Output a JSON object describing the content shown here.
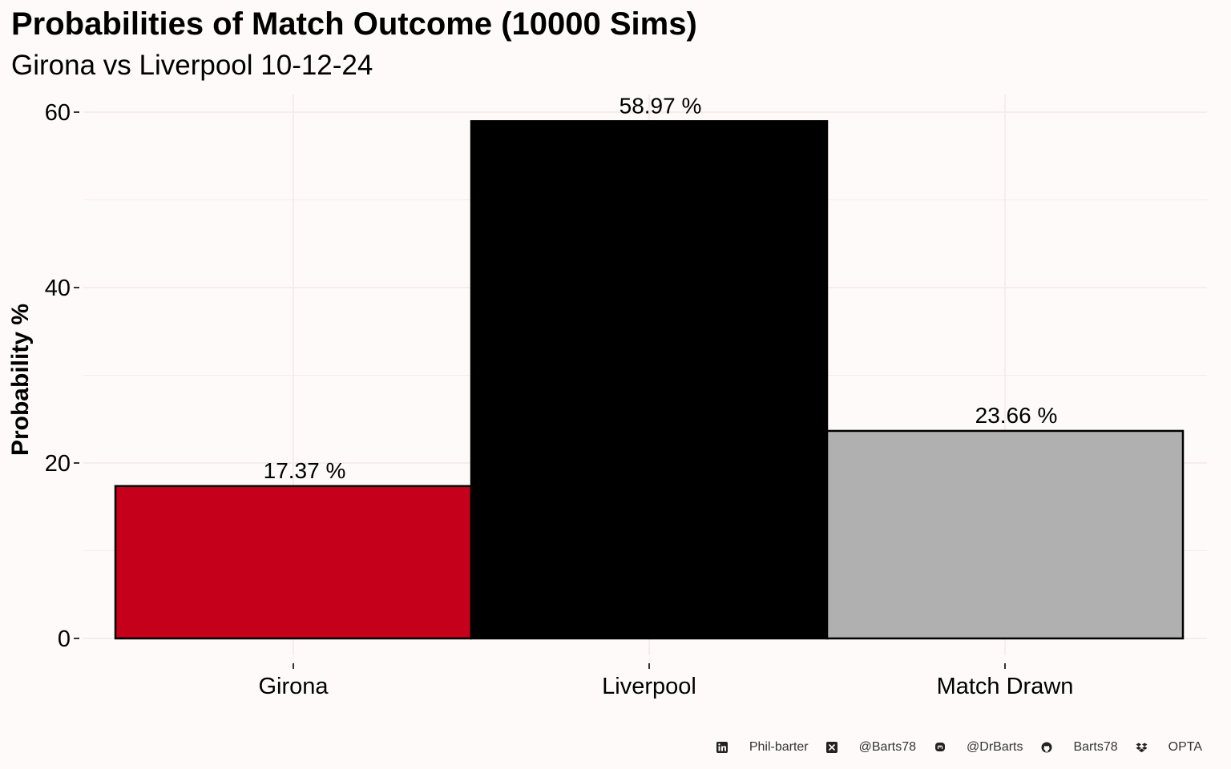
{
  "chart_data": {
    "type": "bar",
    "title": "Probabilities of Match Outcome (10000 Sims)",
    "subtitle": "Girona vs Liverpool 10-12-24",
    "xlabel": "",
    "ylabel": "Probability %",
    "categories": [
      "Girona",
      "Liverpool",
      "Match Drawn"
    ],
    "values": [
      17.37,
      58.97,
      23.66
    ],
    "data_labels": [
      "17.37  %",
      "58.97  %",
      "23.66  %"
    ],
    "bar_colors": [
      "#c4001a",
      "#000000",
      "#b0b0b0"
    ],
    "ylim": [
      0,
      62
    ],
    "yticks": [
      0,
      20,
      40,
      60
    ],
    "grid": true,
    "legend": "none"
  },
  "footer": {
    "items": [
      {
        "icon": "linkedin-icon",
        "text": "Phil-barter"
      },
      {
        "icon": "x-twitter-icon",
        "text": "@Barts78"
      },
      {
        "icon": "mastodon-icon",
        "text": "@DrBarts"
      },
      {
        "icon": "github-icon",
        "text": "Barts78"
      },
      {
        "icon": "dropbox-icon",
        "text": "OPTA"
      }
    ]
  }
}
